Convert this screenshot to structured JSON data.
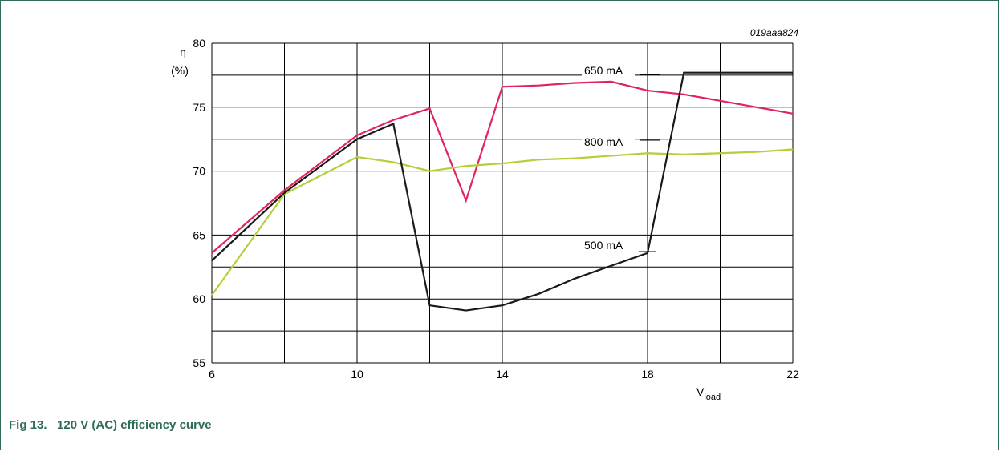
{
  "caption": "Fig 13.   120 V (AC) efficiency curve",
  "figure_code": "019aaa824",
  "chart_data": {
    "type": "line",
    "ylabel": "η",
    "ylabel_unit": "(%)",
    "xlabel_main": "V",
    "xlabel_sub": "load",
    "xlim": [
      6,
      22
    ],
    "ylim": [
      55,
      80
    ],
    "x_ticks": [
      6,
      10,
      14,
      18,
      22
    ],
    "y_ticks": [
      55,
      60,
      65,
      70,
      75,
      80
    ],
    "grid": true,
    "series": [
      {
        "name": "650 mA",
        "color": "#e0245e",
        "x": [
          6,
          8,
          10,
          11,
          12,
          13,
          14,
          15,
          16,
          17,
          18,
          19,
          20,
          21,
          22
        ],
        "y": [
          63.6,
          68.5,
          72.8,
          74.0,
          74.9,
          67.7,
          76.6,
          76.7,
          76.9,
          77.0,
          76.3,
          76.0,
          75.5,
          75.0,
          74.5
        ]
      },
      {
        "name": "800 mA",
        "color": "#b3cf3a",
        "x": [
          6,
          8,
          10,
          11,
          12,
          13,
          14,
          15,
          16,
          17,
          18,
          19,
          20,
          21,
          22
        ],
        "y": [
          60.3,
          68.2,
          71.1,
          70.7,
          70.0,
          70.4,
          70.6,
          70.9,
          71.0,
          71.2,
          71.4,
          71.3,
          71.4,
          71.5,
          71.7
        ]
      },
      {
        "name": "500 mA",
        "color": "#1a1a1a",
        "x": [
          6,
          8,
          10,
          11,
          12,
          13,
          14,
          15,
          16,
          17,
          18,
          19,
          20,
          21,
          22
        ],
        "y": [
          63.0,
          68.3,
          72.5,
          73.7,
          59.5,
          59.1,
          59.5,
          60.4,
          61.6,
          62.6,
          63.6,
          77.7,
          77.7,
          77.7,
          77.7
        ]
      }
    ],
    "annotations": [
      {
        "text": "650 mA",
        "series": "650 mA"
      },
      {
        "text": "800 mA",
        "series": "800 mA"
      },
      {
        "text": "500 mA",
        "series": "500 mA"
      }
    ]
  }
}
